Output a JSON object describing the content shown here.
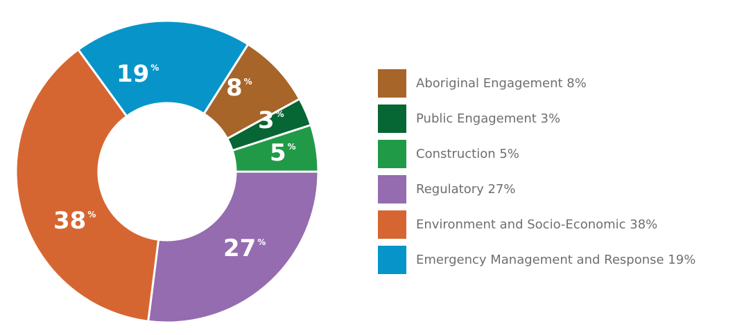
{
  "chart_data": {
    "type": "pie",
    "variant": "donut",
    "title": "",
    "start_angle_deg": 0,
    "direction": "clockwise",
    "legend_position": "right",
    "slices": [
      {
        "label": "Regulatory",
        "value": 27,
        "color": "#956caf"
      },
      {
        "label": "Environment and Socio-Economic",
        "value": 38,
        "color": "#d66631"
      },
      {
        "label": "Emergency Management and Response",
        "value": 19,
        "color": "#0795c9"
      },
      {
        "label": "Aboriginal Engagement",
        "value": 8,
        "color": "#a7652a"
      },
      {
        "label": "Public Engagement",
        "value": 3,
        "color": "#066634"
      },
      {
        "label": "Construction",
        "value": 5,
        "color": "#219a48"
      }
    ]
  },
  "legend": {
    "items": [
      {
        "label": "Aboriginal Engagement 8%",
        "color": "#a7652a"
      },
      {
        "label": "Public Engagement 3%",
        "color": "#066634"
      },
      {
        "label": "Construction 5%",
        "color": "#219a48"
      },
      {
        "label": "Regulatory 27%",
        "color": "#956caf"
      },
      {
        "label": "Environment and Socio-Economic 38%",
        "color": "#d66631"
      },
      {
        "label": "Emergency Management and Response 19%",
        "color": "#0795c9"
      }
    ]
  },
  "labels": {
    "percent_symbol": "%",
    "regulatory": "27",
    "environment": "38",
    "emergency": "19",
    "aboriginal": "8",
    "public": "3",
    "construction": "5"
  }
}
